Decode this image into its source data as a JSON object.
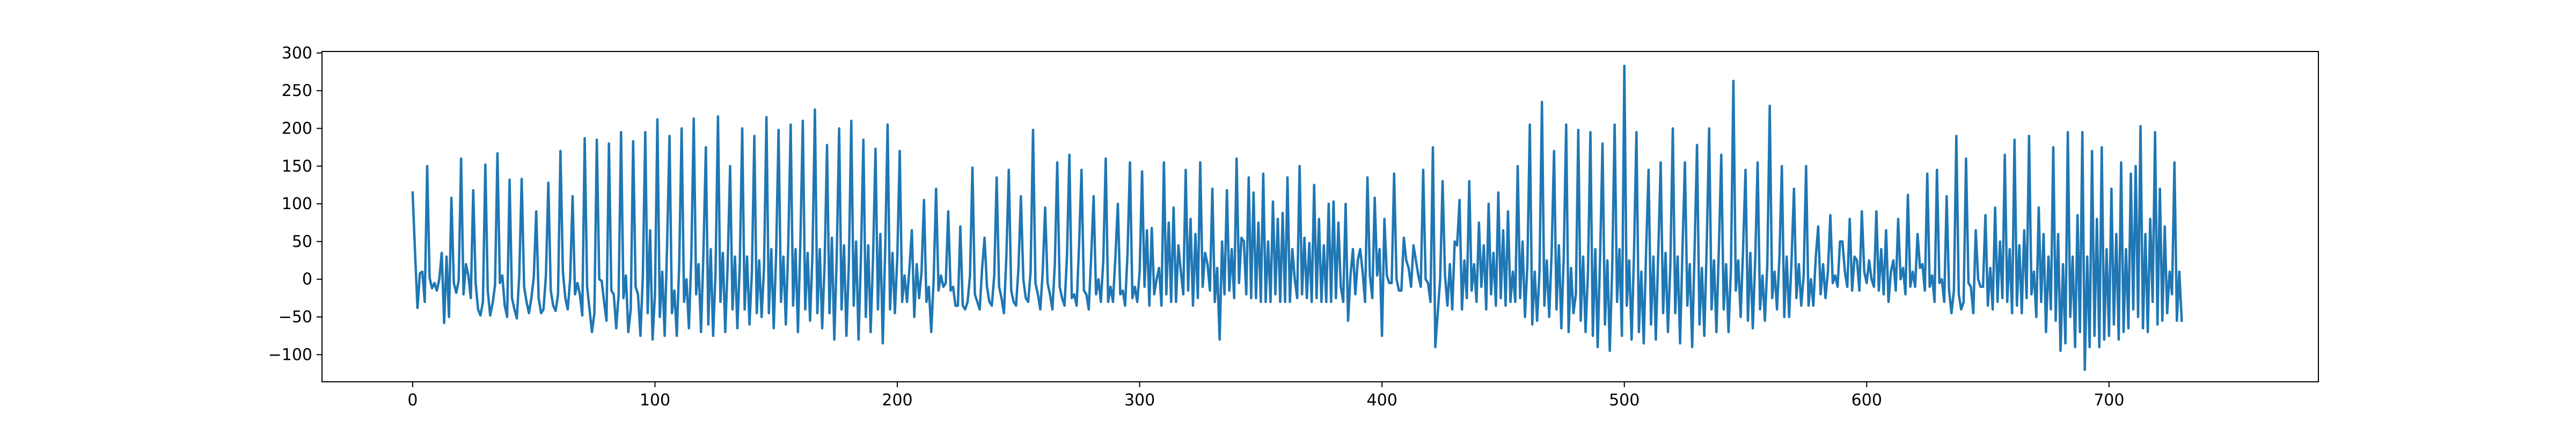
{
  "chart_data": {
    "type": "line",
    "title": "",
    "xlabel": "",
    "ylabel": "",
    "xlim": [
      -37.4,
      786.4
    ],
    "ylim": [
      -136,
      302
    ],
    "xticks": [
      0,
      100,
      200,
      300,
      400,
      500,
      600,
      700
    ],
    "yticks": [
      -100,
      -50,
      0,
      50,
      100,
      150,
      200,
      250,
      300
    ],
    "grid": false,
    "legend": "none",
    "series": [
      {
        "color": "#1f77b4",
        "x_start": 0,
        "x_step": 1,
        "values": [
          115,
          35,
          -38,
          8,
          10,
          -30,
          150,
          2,
          -12,
          -5,
          -15,
          0,
          35,
          -58,
          30,
          -50,
          108,
          -5,
          -18,
          -2,
          160,
          -20,
          20,
          5,
          -25,
          118,
          -5,
          -40,
          -48,
          -30,
          152,
          -15,
          -48,
          -32,
          -8,
          167,
          -5,
          5,
          -35,
          -50,
          132,
          -25,
          -40,
          -52,
          5,
          133,
          -10,
          -30,
          -45,
          -25,
          3,
          90,
          -25,
          -45,
          -40,
          5,
          128,
          -15,
          -35,
          -42,
          -20,
          170,
          10,
          -25,
          -40,
          0,
          110,
          -20,
          -5,
          -20,
          -48,
          187,
          -10,
          -40,
          -70,
          -45,
          185,
          0,
          -2,
          -30,
          -55,
          180,
          -15,
          -20,
          -65,
          -20,
          195,
          -25,
          5,
          -70,
          -40,
          183,
          -10,
          -20,
          -75,
          5,
          195,
          -45,
          65,
          -80,
          -20,
          212,
          -50,
          10,
          -75,
          45,
          190,
          -45,
          -15,
          -75,
          20,
          200,
          -30,
          0,
          -65,
          30,
          213,
          -20,
          20,
          -70,
          35,
          175,
          -60,
          40,
          -75,
          10,
          216,
          -30,
          35,
          -70,
          20,
          150,
          -40,
          30,
          -65,
          20,
          200,
          -40,
          30,
          -60,
          10,
          190,
          -45,
          25,
          -50,
          15,
          215,
          -45,
          40,
          -65,
          35,
          198,
          -30,
          30,
          -60,
          45,
          205,
          -35,
          40,
          -70,
          50,
          210,
          -40,
          35,
          -55,
          35,
          225,
          -45,
          40,
          -65,
          20,
          178,
          -45,
          55,
          -80,
          30,
          200,
          -40,
          45,
          -75,
          20,
          210,
          -35,
          50,
          -80,
          30,
          185,
          -50,
          45,
          -70,
          30,
          173,
          -40,
          60,
          -85,
          40,
          205,
          -40,
          35,
          -45,
          30,
          170,
          -30,
          5,
          -30,
          15,
          65,
          -50,
          20,
          -25,
          10,
          105,
          -30,
          -10,
          -70,
          0,
          120,
          -15,
          5,
          -10,
          -5,
          90,
          -15,
          -10,
          -35,
          -35,
          70,
          -35,
          -40,
          -30,
          5,
          148,
          -20,
          -30,
          -40,
          15,
          55,
          -10,
          -30,
          -35,
          5,
          135,
          -10,
          -25,
          -45,
          30,
          145,
          -15,
          -30,
          -35,
          15,
          110,
          0,
          -25,
          -30,
          10,
          198,
          -5,
          -20,
          -40,
          10,
          95,
          -5,
          -20,
          -40,
          20,
          155,
          -10,
          -25,
          -35,
          30,
          165,
          -25,
          -20,
          -35,
          45,
          145,
          -15,
          -20,
          -40,
          30,
          110,
          -20,
          0,
          -30,
          25,
          160,
          -30,
          -10,
          -30,
          30,
          100,
          -20,
          -15,
          -35,
          35,
          155,
          -25,
          -10,
          -30,
          10,
          143,
          -10,
          65,
          -35,
          68,
          -20,
          0,
          15,
          -35,
          155,
          -20,
          75,
          -30,
          95,
          -30,
          45,
          10,
          -20,
          145,
          -15,
          80,
          -35,
          60,
          -25,
          155,
          -10,
          35,
          20,
          -15,
          120,
          -30,
          15,
          -80,
          50,
          -20,
          118,
          -15,
          40,
          -25,
          160,
          -5,
          55,
          50,
          -20,
          135,
          -25,
          115,
          -25,
          75,
          -30,
          140,
          -30,
          50,
          -30,
          103,
          -20,
          80,
          -30,
          88,
          -30,
          135,
          -30,
          40,
          0,
          -25,
          150,
          -20,
          55,
          -25,
          48,
          -30,
          125,
          -25,
          80,
          -30,
          45,
          -30,
          100,
          -30,
          103,
          -25,
          75,
          -10,
          -30,
          100,
          -55,
          5,
          40,
          -20,
          25,
          40,
          10,
          -30,
          135,
          5,
          -25,
          108,
          5,
          40,
          -75,
          80,
          5,
          -5,
          -5,
          140,
          0,
          -15,
          -15,
          55,
          25,
          15,
          -10,
          45,
          25,
          5,
          -10,
          145,
          0,
          -5,
          -30,
          175,
          -90,
          -45,
          0,
          130,
          5,
          -35,
          20,
          -40,
          50,
          45,
          105,
          -40,
          25,
          -25,
          130,
          -15,
          20,
          -30,
          75,
          -10,
          45,
          -40,
          100,
          -20,
          35,
          -35,
          115,
          -25,
          65,
          -35,
          90,
          -30,
          10,
          -30,
          150,
          -25,
          50,
          -50,
          20,
          205,
          -60,
          10,
          -55,
          10,
          235,
          -35,
          25,
          -50,
          35,
          170,
          -40,
          45,
          -65,
          30,
          205,
          -70,
          15,
          -45,
          -20,
          198,
          -55,
          30,
          -70,
          10,
          195,
          -75,
          40,
          -90,
          30,
          180,
          -60,
          25,
          -95,
          15,
          205,
          -30,
          40,
          -75,
          283,
          -35,
          25,
          -80,
          35,
          195,
          -70,
          10,
          -85,
          40,
          145,
          -60,
          30,
          -80,
          35,
          155,
          -45,
          35,
          -70,
          20,
          200,
          -45,
          30,
          -85,
          40,
          155,
          -35,
          20,
          -90,
          40,
          178,
          -60,
          15,
          -75,
          45,
          200,
          -40,
          25,
          -70,
          40,
          165,
          -40,
          20,
          -70,
          15,
          263,
          -15,
          25,
          -50,
          40,
          145,
          -55,
          35,
          -65,
          25,
          155,
          -40,
          5,
          -55,
          20,
          230,
          -25,
          10,
          -40,
          30,
          150,
          -50,
          30,
          -50,
          25,
          120,
          -25,
          20,
          -35,
          5,
          150,
          -35,
          0,
          -35,
          30,
          70,
          -20,
          20,
          -25,
          10,
          85,
          -5,
          5,
          -10,
          50,
          50,
          10,
          -10,
          80,
          -15,
          30,
          25,
          -15,
          90,
          10,
          -5,
          25,
          0,
          -10,
          90,
          -15,
          40,
          -20,
          65,
          -30,
          10,
          25,
          -15,
          80,
          0,
          15,
          -20,
          112,
          -10,
          10,
          -10,
          60,
          15,
          20,
          -15,
          140,
          -10,
          5,
          -30,
          145,
          -5,
          0,
          -30,
          110,
          -15,
          -45,
          -15,
          190,
          -20,
          -40,
          -30,
          160,
          -5,
          -10,
          -45,
          65,
          0,
          -10,
          -10,
          85,
          -35,
          15,
          -40,
          95,
          -30,
          50,
          -25,
          165,
          -30,
          40,
          -45,
          185,
          -35,
          45,
          -45,
          65,
          -25,
          190,
          -20,
          10,
          -50,
          95,
          -30,
          60,
          -70,
          30,
          -40,
          175,
          -55,
          60,
          -95,
          20,
          -85,
          195,
          -50,
          30,
          -90,
          85,
          -70,
          195,
          -120,
          30,
          -90,
          170,
          -75,
          80,
          -90,
          175,
          -80,
          40,
          -75,
          120,
          -60,
          60,
          -80,
          155,
          -70,
          40,
          -65,
          140,
          -40,
          150,
          -50,
          203,
          -65,
          60,
          -70,
          80,
          -30,
          195,
          -60,
          120,
          -55,
          70,
          -45,
          10,
          -20,
          155,
          -55,
          10,
          -55
        ]
      }
    ]
  }
}
